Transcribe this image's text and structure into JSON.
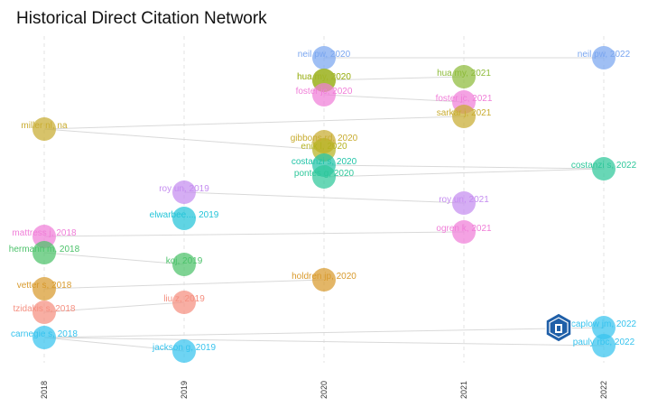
{
  "chart_data": {
    "type": "scatter",
    "title": "Historical Direct Citation Network",
    "xlabel": "",
    "ylabel": "",
    "x_ticks": [
      "2018",
      "2019",
      "2020",
      "2021",
      "2022"
    ],
    "grid": "vertical dashed",
    "nodes": [
      {
        "label": "neil pw, 2020",
        "year": 2020,
        "row": 1,
        "color": "#7aa6f0"
      },
      {
        "label": "hua my, 2020",
        "year": 2020,
        "row": 2,
        "color": "#8dbb3a"
      },
      {
        "label": "hua my, 2020",
        "year": 2020,
        "row": 3,
        "color": "#a8b62a"
      },
      {
        "label": "foster jc, 2020",
        "year": 2020,
        "row": 4,
        "color": "#f07ed8"
      },
      {
        "label": "gibbons rd, 2020",
        "year": 2020,
        "row": 5,
        "color": "#c8ac30"
      },
      {
        "label": "enik l, 2020",
        "year": 2020,
        "row": 6,
        "color": "#b5b320"
      },
      {
        "label": "costanzi s, 2020",
        "year": 2020,
        "row": 7,
        "color": "#22c4a8"
      },
      {
        "label": "pontes g, 2020",
        "year": 2020,
        "row": 8,
        "color": "#2ec79a"
      },
      {
        "label": "holdren jp, 2020",
        "year": 2020,
        "row": 9,
        "color": "#d89a2c"
      },
      {
        "label": "neil pw, 2022",
        "year": 2022,
        "row": 1,
        "color": "#7aa6f0"
      },
      {
        "label": "costanzi s, 2022",
        "year": 2022,
        "row": 2,
        "color": "#2ec79a"
      },
      {
        "label": "caplow jm, 2022",
        "year": 2022,
        "row": 3,
        "color": "#36c3ee"
      },
      {
        "label": "pauly rbc, 2022",
        "year": 2022,
        "row": 4,
        "color": "#36c3ee"
      },
      {
        "label": "hua my, 2021",
        "year": 2021,
        "row": 1,
        "color": "#8dbb3a"
      },
      {
        "label": "foster jc, 2021",
        "year": 2021,
        "row": 2,
        "color": "#f07ed8"
      },
      {
        "label": "sarkar j, 2021",
        "year": 2021,
        "row": 3,
        "color": "#c8ac30"
      },
      {
        "label": "roy un, 2021",
        "year": 2021,
        "row": 4,
        "color": "#c58df0"
      },
      {
        "label": "ogren k, 2021",
        "year": 2021,
        "row": 5,
        "color": "#f07ed8"
      },
      {
        "label": "roy un, 2019",
        "year": 2019,
        "row": 1,
        "color": "#c58df0"
      },
      {
        "label": "elwarbee..., 2019",
        "year": 2019,
        "row": 2,
        "color": "#22c4d8"
      },
      {
        "label": "koj, 2019",
        "year": 2019,
        "row": 3,
        "color": "#4cc26a"
      },
      {
        "label": "liu z, 2019",
        "year": 2019,
        "row": 4,
        "color": "#f58f80"
      },
      {
        "label": "jackson g, 2019",
        "year": 2019,
        "row": 5,
        "color": "#36c3ee"
      },
      {
        "label": "miller nl, na",
        "year": 2018,
        "row": 1,
        "color": "#c8ac30"
      },
      {
        "label": "mattress j, 2018",
        "year": 2018,
        "row": 2,
        "color": "#f07ed8"
      },
      {
        "label": "hermann m, 2018",
        "year": 2018,
        "row": 3,
        "color": "#4cc26a"
      },
      {
        "label": "vetter s, 2018",
        "year": 2018,
        "row": 4,
        "color": "#d89a2c"
      },
      {
        "label": "tzidakis s, 2018",
        "year": 2018,
        "row": 5,
        "color": "#f58f80"
      },
      {
        "label": "carnegie s, 2018",
        "year": 2018,
        "row": 6,
        "color": "#36c3ee"
      }
    ],
    "links": [
      [
        "neil pw, 2020",
        "neil pw, 2022"
      ],
      [
        "hua my, 2020",
        "hua my, 2021"
      ],
      [
        "foster jc, 2020",
        "foster jc, 2021"
      ],
      [
        "miller nl, na",
        "sarkar j, 2021"
      ],
      [
        "miller nl, na",
        "enik l, 2020"
      ],
      [
        "costanzi s, 2020",
        "costanzi s, 2022"
      ],
      [
        "pontes g, 2020",
        "costanzi s, 2022"
      ],
      [
        "roy un, 2019",
        "roy un, 2021"
      ],
      [
        "mattress j, 2018",
        "ogren k, 2021"
      ],
      [
        "hermann m, 2018",
        "koj, 2019"
      ],
      [
        "vetter s, 2018",
        "holdren jp, 2020"
      ],
      [
        "tzidakis s, 2018",
        "liu z, 2019"
      ],
      [
        "carnegie s, 2018",
        "caplow jm, 2022"
      ],
      [
        "carnegie s, 2018",
        "pauly rbc, 2022"
      ],
      [
        "carnegie s, 2018",
        "jackson g, 2019"
      ]
    ]
  }
}
